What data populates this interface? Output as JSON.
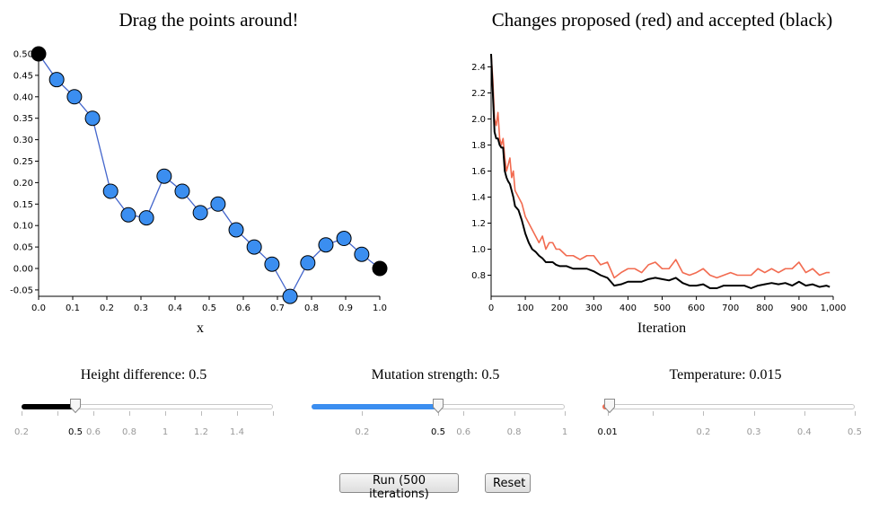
{
  "left_panel": {
    "title": "Drag the points around!",
    "xlabel": "x",
    "x_ticks": [
      "0.0",
      "0.1",
      "0.2",
      "0.3",
      "0.4",
      "0.5",
      "0.6",
      "0.7",
      "0.8",
      "0.9",
      "1.0"
    ],
    "y_ticks": [
      "-0.05",
      "0.00",
      "0.05",
      "0.10",
      "0.15",
      "0.20",
      "0.25",
      "0.30",
      "0.35",
      "0.40",
      "0.45",
      "0.50"
    ],
    "point_color": "#3b8ef0",
    "endpoint_color": "#000000",
    "line_color": "#4466cc"
  },
  "right_panel": {
    "title": "Changes proposed (red) and accepted (black)",
    "xlabel": "Iteration",
    "x_ticks": [
      "0",
      "100",
      "200",
      "300",
      "400",
      "500",
      "600",
      "700",
      "800",
      "900",
      "1,000"
    ],
    "y_ticks": [
      "0.8",
      "1.0",
      "1.2",
      "1.4",
      "1.6",
      "1.8",
      "2.0",
      "2.2",
      "2.4"
    ],
    "proposed_color": "#f26b50",
    "accepted_color": "#000000"
  },
  "chart_data": [
    {
      "type": "line",
      "title": "Drag the points around!",
      "xlabel": "x",
      "ylabel": "",
      "xlim": [
        0,
        1
      ],
      "ylim": [
        -0.05,
        0.5
      ],
      "series": [
        {
          "x": [
            0.0,
            0.053,
            0.105,
            0.158,
            0.211,
            0.263,
            0.316,
            0.368,
            0.421,
            0.474,
            0.526,
            0.579,
            0.632,
            0.684,
            0.737,
            0.789,
            0.842,
            0.895,
            0.947,
            1.0
          ],
          "y": [
            0.5,
            0.44,
            0.4,
            0.35,
            0.18,
            0.125,
            0.118,
            0.215,
            0.18,
            0.13,
            0.15,
            0.09,
            0.05,
            0.01,
            -0.065,
            0.013,
            0.055,
            0.07,
            0.033,
            0.0
          ]
        }
      ]
    },
    {
      "type": "line",
      "title": "Changes proposed (red) and accepted (black)",
      "xlabel": "Iteration",
      "ylabel": "",
      "xlim": [
        0,
        1000
      ],
      "ylim": [
        0.68,
        2.5
      ],
      "series": [
        {
          "name": "proposed",
          "x": [
            0,
            5,
            10,
            15,
            20,
            25,
            30,
            35,
            40,
            45,
            50,
            55,
            60,
            65,
            70,
            80,
            90,
            100,
            110,
            120,
            130,
            140,
            150,
            160,
            170,
            180,
            190,
            200,
            220,
            240,
            260,
            280,
            300,
            320,
            340,
            360,
            380,
            400,
            420,
            440,
            460,
            480,
            500,
            520,
            540,
            560,
            580,
            600,
            620,
            640,
            660,
            680,
            700,
            720,
            740,
            760,
            780,
            800,
            820,
            840,
            860,
            880,
            900,
            920,
            940,
            960,
            980,
            990
          ],
          "y": [
            2.5,
            2.3,
            2.0,
            1.95,
            2.05,
            1.85,
            1.8,
            1.85,
            1.7,
            1.6,
            1.65,
            1.7,
            1.55,
            1.6,
            1.45,
            1.4,
            1.35,
            1.25,
            1.2,
            1.15,
            1.1,
            1.05,
            1.1,
            1.0,
            1.05,
            1.05,
            1.0,
            1.0,
            0.95,
            0.95,
            0.92,
            0.95,
            0.95,
            0.88,
            0.9,
            0.78,
            0.82,
            0.85,
            0.85,
            0.82,
            0.88,
            0.9,
            0.85,
            0.85,
            0.92,
            0.82,
            0.8,
            0.82,
            0.85,
            0.8,
            0.78,
            0.8,
            0.82,
            0.8,
            0.8,
            0.8,
            0.85,
            0.82,
            0.85,
            0.82,
            0.85,
            0.85,
            0.9,
            0.82,
            0.85,
            0.8,
            0.82,
            0.82
          ]
        },
        {
          "name": "accepted",
          "x": [
            0,
            5,
            10,
            15,
            20,
            25,
            30,
            35,
            40,
            45,
            50,
            55,
            60,
            65,
            70,
            80,
            90,
            100,
            110,
            120,
            130,
            140,
            150,
            160,
            170,
            180,
            190,
            200,
            220,
            240,
            260,
            280,
            300,
            320,
            340,
            360,
            380,
            400,
            420,
            440,
            460,
            480,
            500,
            520,
            540,
            560,
            580,
            600,
            620,
            640,
            660,
            680,
            700,
            720,
            740,
            760,
            780,
            800,
            820,
            840,
            860,
            880,
            900,
            920,
            940,
            960,
            980,
            990
          ],
          "y": [
            2.5,
            2.2,
            1.9,
            1.85,
            1.85,
            1.8,
            1.78,
            1.78,
            1.6,
            1.55,
            1.52,
            1.5,
            1.45,
            1.4,
            1.33,
            1.3,
            1.22,
            1.12,
            1.05,
            1.0,
            0.98,
            0.95,
            0.93,
            0.9,
            0.9,
            0.9,
            0.88,
            0.87,
            0.87,
            0.85,
            0.85,
            0.85,
            0.83,
            0.8,
            0.78,
            0.72,
            0.73,
            0.75,
            0.75,
            0.75,
            0.77,
            0.78,
            0.77,
            0.76,
            0.78,
            0.74,
            0.72,
            0.72,
            0.73,
            0.7,
            0.7,
            0.72,
            0.72,
            0.72,
            0.72,
            0.7,
            0.72,
            0.73,
            0.74,
            0.73,
            0.74,
            0.72,
            0.75,
            0.72,
            0.73,
            0.71,
            0.72,
            0.71
          ]
        }
      ]
    }
  ],
  "sliders": [
    {
      "title": "Height difference: 0.5",
      "value": 0.5,
      "min": 0.2,
      "max": 1.6,
      "fill_color": "#000000",
      "tick_values": [
        0.2,
        0.4,
        0.6,
        0.8,
        1.0,
        1.2,
        1.4,
        1.6
      ],
      "labels": [
        {
          "value": 0.2,
          "text": "0.2"
        },
        {
          "value": 0.5,
          "text": "0.5",
          "active": true
        },
        {
          "value": 0.6,
          "text": "0.6"
        },
        {
          "value": 0.8,
          "text": "0.8"
        },
        {
          "value": 1.0,
          "text": "1"
        },
        {
          "value": 1.2,
          "text": "1.2"
        },
        {
          "value": 1.4,
          "text": "1.4"
        }
      ]
    },
    {
      "title": "Mutation strength: 0.5",
      "value": 0.5,
      "min": 0.0,
      "max": 1.0,
      "fill_color": "#3b8ef0",
      "tick_values": [
        0.2,
        0.5,
        0.6,
        0.8,
        1.0
      ],
      "labels": [
        {
          "value": 0.2,
          "text": "0.2"
        },
        {
          "value": 0.5,
          "text": "0.5",
          "active": true
        },
        {
          "value": 0.6,
          "text": "0.6"
        },
        {
          "value": 0.8,
          "text": "0.8"
        },
        {
          "value": 1.0,
          "text": "1"
        }
      ]
    },
    {
      "title": "Temperature: 0.015",
      "value": 0.015,
      "min": 0.0,
      "max": 0.5,
      "fill_color": "#f26b50",
      "tick_values": [
        0.01,
        0.1,
        0.2,
        0.3,
        0.4,
        0.5
      ],
      "labels": [
        {
          "value": 0.01,
          "text": "0.01",
          "active": true
        },
        {
          "value": 0.2,
          "text": "0.2"
        },
        {
          "value": 0.3,
          "text": "0.3"
        },
        {
          "value": 0.4,
          "text": "0.4"
        },
        {
          "value": 0.5,
          "text": "0.5"
        }
      ]
    }
  ],
  "buttons": {
    "run_label": "Run (500 iterations)",
    "reset_label": "Reset"
  }
}
